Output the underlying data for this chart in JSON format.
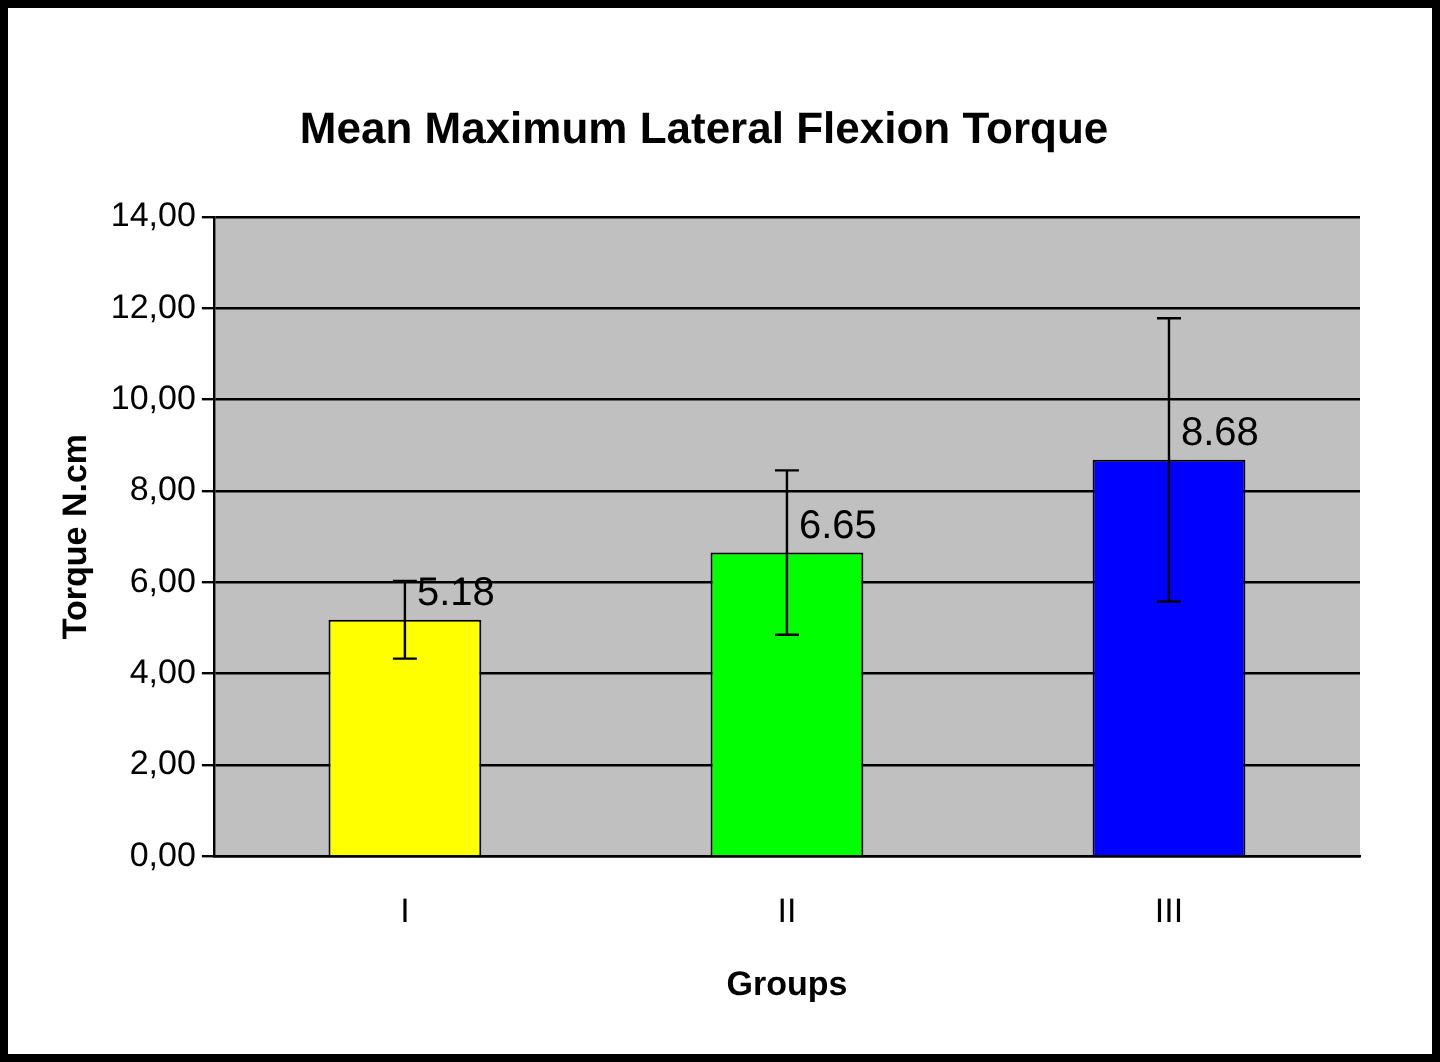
{
  "chart_data": {
    "type": "bar",
    "title": "Mean Maximum Lateral Flexion Torque",
    "xlabel": "Groups",
    "ylabel": "Torque N.cm",
    "categories": [
      "I",
      "II",
      "III"
    ],
    "values": [
      5.18,
      6.65,
      8.68
    ],
    "colors": [
      "#ffff00",
      "#00ff00",
      "#0000ff"
    ],
    "errors": [
      0.85,
      1.8,
      3.1
    ],
    "value_labels": [
      "5.18",
      "6.65",
      "8.68"
    ],
    "ylim": [
      0,
      14
    ],
    "yticks": [
      {
        "value": 0,
        "label": "0,00"
      },
      {
        "value": 2,
        "label": "2,00"
      },
      {
        "value": 4,
        "label": "4,00"
      },
      {
        "value": 6,
        "label": "6,00"
      },
      {
        "value": 8,
        "label": "8,00"
      },
      {
        "value": 10,
        "label": "10,00"
      },
      {
        "value": 12,
        "label": "12,00"
      },
      {
        "value": 14,
        "label": "14,00"
      }
    ],
    "grid": "y",
    "legend": false
  }
}
